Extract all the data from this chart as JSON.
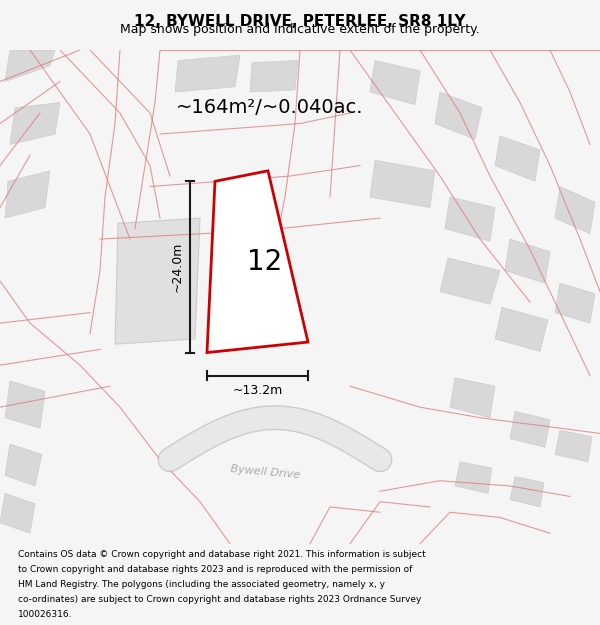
{
  "title": "12, BYWELL DRIVE, PETERLEE, SR8 1LY",
  "subtitle": "Map shows position and indicative extent of the property.",
  "area_text": "~164m²/~0.040ac.",
  "dim_height": "~24.0m",
  "dim_width": "~13.2m",
  "label_number": "12",
  "road_label": "Bywell Drive",
  "footer_lines": [
    "Contains OS data © Crown copyright and database right 2021. This information is subject",
    "to Crown copyright and database rights 2023 and is reproduced with the permission of",
    "HM Land Registry. The polygons (including the associated geometry, namely x, y",
    "co-ordinates) are subject to Crown copyright and database rights 2023 Ordnance Survey",
    "100026316."
  ],
  "bg_color": "#f5f5f5",
  "map_bg": "#ffffff",
  "plot_fill": "#ffffff",
  "plot_edge": "#cc0000",
  "building_color": "#d8d8d8",
  "line_color": "#e08080",
  "dim_line_color": "#1a1a1a"
}
